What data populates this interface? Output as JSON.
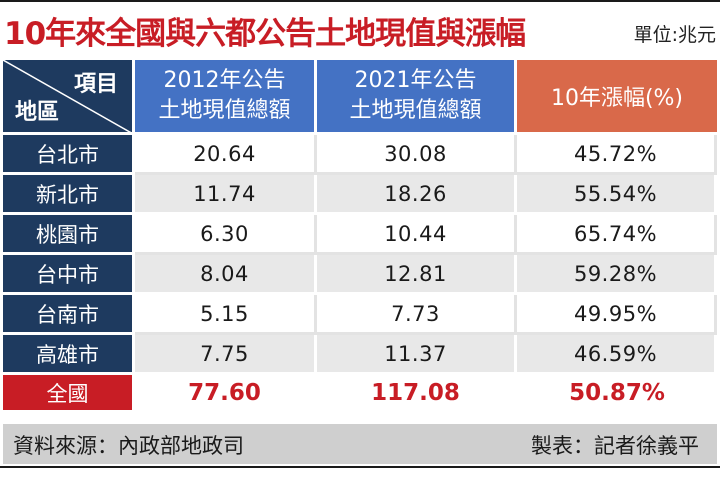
{
  "title": "10年來全國與六都公告土地現值與漲幅",
  "unit": "單位:兆元",
  "header": {
    "corner_top": "項目",
    "corner_bottom": "地區",
    "col_2012_line1": "2012年公告",
    "col_2012_line2": "土地現值總額",
    "col_2021_line1": "2021年公告",
    "col_2021_line2": "土地現值總額",
    "col_growth": "10年漲幅(%)"
  },
  "rows": [
    {
      "region": "台北市",
      "v2012": "20.64",
      "v2021": "30.08",
      "growth": "45.72%"
    },
    {
      "region": "新北市",
      "v2012": "11.74",
      "v2021": "18.26",
      "growth": "55.54%"
    },
    {
      "region": "桃園市",
      "v2012": "6.30",
      "v2021": "10.44",
      "growth": "65.74%"
    },
    {
      "region": "台中市",
      "v2012": "8.04",
      "v2021": "12.81",
      "growth": "59.28%"
    },
    {
      "region": "台南市",
      "v2012": "5.15",
      "v2021": "7.73",
      "growth": "49.95%"
    },
    {
      "region": "高雄市",
      "v2012": "7.75",
      "v2021": "11.37",
      "growth": "46.59%"
    }
  ],
  "total": {
    "region": "全國",
    "v2012": "77.60",
    "v2021": "117.08",
    "growth": "50.87%"
  },
  "footer": {
    "source": "資料來源：內政部地政司",
    "credit": "製表：記者徐義平"
  },
  "colors": {
    "title_red": "#c81d25",
    "navy": "#1e3a5f",
    "header_blue": "#4472c4",
    "header_orange": "#d9694a",
    "total_red": "#c81d25",
    "footer_grey": "#cfcfcf"
  }
}
